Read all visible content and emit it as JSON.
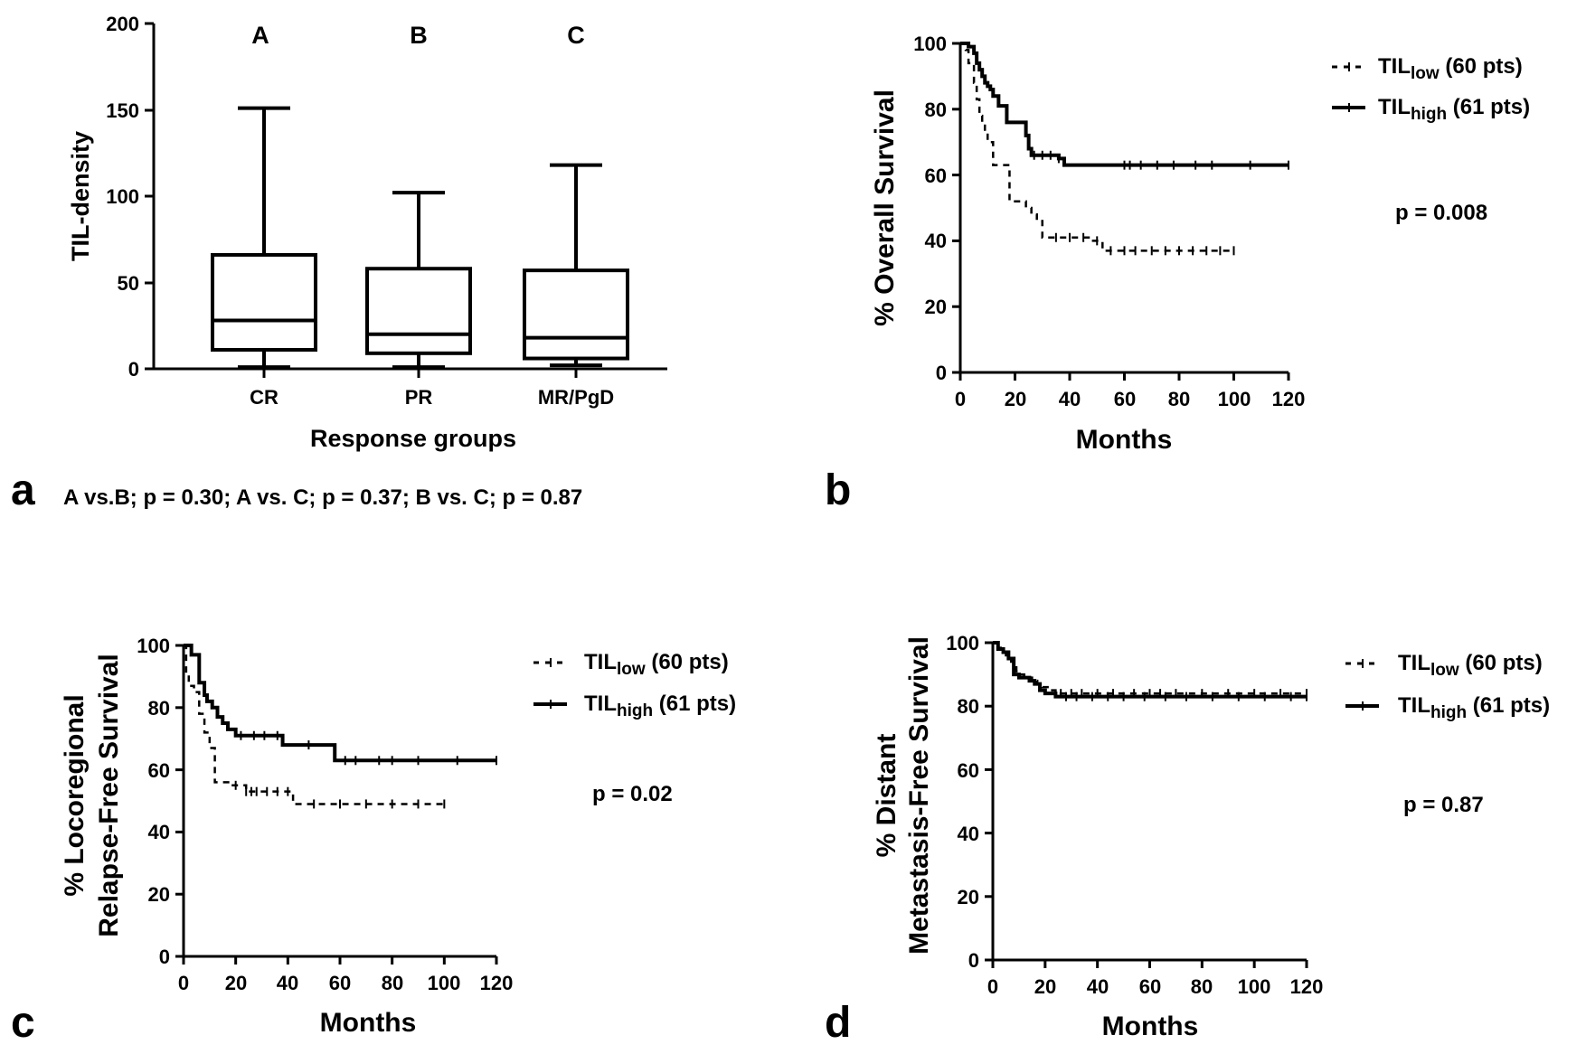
{
  "chart_data": [
    {
      "id": "a",
      "type": "box",
      "panel_label": "a",
      "ylabel": "TIL-density",
      "xlabel": "Response groups",
      "ylim": [
        0,
        200
      ],
      "yticks": [
        "0",
        "50",
        "100",
        "150",
        "200"
      ],
      "categories": [
        "CR",
        "PR",
        "MR/PgD"
      ],
      "group_letters": [
        "A",
        "B",
        "C"
      ],
      "boxes": [
        {
          "min": 1,
          "q1": 11,
          "median": 28,
          "q3": 66,
          "max": 151
        },
        {
          "min": 1,
          "q1": 9,
          "median": 20,
          "q3": 58,
          "max": 102
        },
        {
          "min": 2,
          "q1": 6,
          "median": 18,
          "q3": 57,
          "max": 118
        }
      ],
      "annotation": "A vs.B; p = 0.30; A vs. C; p = 0.37; B vs. C; p = 0.87"
    },
    {
      "id": "b",
      "type": "line",
      "panel_label": "b",
      "ylabel": "% Overall Survival",
      "xlabel": "Months",
      "xlim": [
        0,
        120
      ],
      "ylim": [
        0,
        100
      ],
      "xticks": [
        "0",
        "20",
        "40",
        "60",
        "80",
        "100",
        "120"
      ],
      "yticks": [
        "0",
        "20",
        "40",
        "60",
        "80",
        "100"
      ],
      "legend": {
        "low_main": "TIL",
        "low_sub": "low",
        "low_rest": " (60 pts)",
        "high_main": "TIL",
        "high_sub": "high",
        "high_rest": " (61 pts)"
      },
      "pvalue": "p = 0.008",
      "series": [
        {
          "name": "TILlow (60 pts)",
          "style": "dashed",
          "x": [
            0,
            2,
            3,
            5,
            6,
            7,
            8,
            9,
            10,
            12,
            18,
            24,
            26,
            28,
            30,
            48,
            52,
            100
          ],
          "y": [
            100,
            98,
            94,
            88,
            83,
            78,
            75,
            73,
            70,
            63,
            52,
            50,
            48,
            46,
            41,
            40,
            37,
            37
          ],
          "censored_x": [
            35,
            40,
            45,
            50,
            55,
            60,
            64,
            70,
            75,
            80,
            85,
            90,
            95,
            100
          ]
        },
        {
          "name": "TILhigh (61 pts)",
          "style": "solid",
          "x": [
            0,
            3,
            5,
            6,
            7,
            8,
            9,
            10,
            11,
            12,
            14,
            17,
            20,
            24,
            25,
            26,
            36,
            38,
            120
          ],
          "y": [
            100,
            99,
            97,
            94,
            92,
            90,
            88,
            87,
            86,
            84,
            81,
            76,
            76,
            72,
            68,
            66,
            65,
            63,
            63
          ],
          "censored_x": [
            27,
            30,
            33,
            36,
            60,
            62,
            66,
            72,
            78,
            86,
            92,
            106,
            120
          ]
        }
      ]
    },
    {
      "id": "c",
      "type": "line",
      "panel_label": "c",
      "ylabel": [
        "% Locoregional",
        "Relapse-Free Survival"
      ],
      "xlabel": "Months",
      "xlim": [
        0,
        120
      ],
      "ylim": [
        0,
        100
      ],
      "xticks": [
        "0",
        "20",
        "40",
        "60",
        "80",
        "100",
        "120"
      ],
      "yticks": [
        "0",
        "20",
        "40",
        "60",
        "80",
        "100"
      ],
      "legend": {
        "low_main": "TIL",
        "low_sub": "low",
        "low_rest": " (60 pts)",
        "high_main": "TIL",
        "high_sub": "high",
        "high_rest": " (61 pts)"
      },
      "pvalue": "p = 0.02",
      "series": [
        {
          "name": "TILlow (60 pts)",
          "style": "dashed",
          "x": [
            0,
            1,
            2,
            4,
            6,
            8,
            10,
            12,
            18,
            24,
            30,
            42,
            100
          ],
          "y": [
            100,
            91,
            87,
            85,
            78,
            72,
            67,
            56,
            55,
            53,
            53,
            49,
            49
          ],
          "censored_x": [
            20,
            24,
            26,
            28,
            32,
            36,
            40,
            50,
            60,
            70,
            80,
            90,
            100
          ]
        },
        {
          "name": "TILhigh (61 pts)",
          "style": "solid",
          "x": [
            0,
            3,
            6,
            8,
            9,
            11,
            13,
            15,
            17,
            20,
            38,
            58,
            120
          ],
          "y": [
            100,
            97,
            88,
            84,
            82,
            80,
            77,
            75,
            73,
            71,
            68,
            63,
            63
          ],
          "censored_x": [
            22,
            27,
            31,
            36,
            48,
            62,
            66,
            75,
            80,
            90,
            105,
            120
          ]
        }
      ]
    },
    {
      "id": "d",
      "type": "line",
      "panel_label": "d",
      "ylabel": [
        "% Distant",
        "Metastasis-Free Survival"
      ],
      "xlabel": "Months",
      "xlim": [
        0,
        120
      ],
      "ylim": [
        0,
        100
      ],
      "xticks": [
        "0",
        "20",
        "40",
        "60",
        "80",
        "100",
        "120"
      ],
      "yticks": [
        "0",
        "20",
        "40",
        "60",
        "80",
        "100"
      ],
      "legend": {
        "low_main": "TIL",
        "low_sub": "low",
        "low_rest": " (60 pts)",
        "high_main": "TIL",
        "high_sub": "high",
        "high_rest": " (61 pts)"
      },
      "pvalue": "p = 0.87",
      "series": [
        {
          "name": "TILlow (60 pts)",
          "style": "dashed",
          "x": [
            0,
            3,
            5,
            7,
            9,
            10,
            12,
            15,
            17,
            19,
            22,
            24,
            120
          ],
          "y": [
            100,
            98,
            96,
            94,
            91,
            90,
            89,
            88,
            87,
            86,
            85,
            84,
            84
          ],
          "censored_x": [
            26,
            30,
            34,
            40,
            46,
            54,
            60,
            64,
            70,
            80,
            90,
            100,
            110,
            120
          ]
        },
        {
          "name": "TILhigh (61 pts)",
          "style": "solid",
          "x": [
            0,
            2,
            4,
            6,
            8,
            10,
            14,
            16,
            18,
            20,
            24,
            120
          ],
          "y": [
            100,
            98,
            97,
            95,
            90,
            89,
            88,
            87,
            85,
            84,
            83,
            83
          ],
          "censored_x": [
            28,
            32,
            38,
            44,
            50,
            58,
            66,
            74,
            84,
            94,
            104,
            114,
            120
          ]
        }
      ]
    }
  ]
}
